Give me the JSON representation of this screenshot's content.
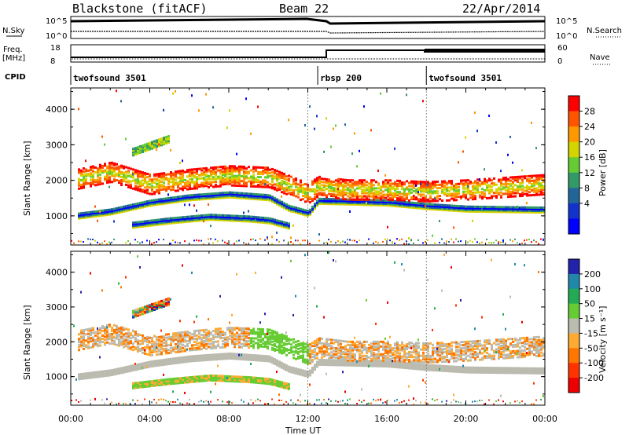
{
  "header": {
    "title": "Blackstone (fitACF)",
    "beam": "Beam 22",
    "date": "22/Apr/2014"
  },
  "left_labels": {
    "nsky": "N.Sky",
    "freq": "Freq.",
    "freq_unit": "[MHz]",
    "cpid": "CPID"
  },
  "right_labels": {
    "nsearch": "N.Search",
    "nave": "Nave"
  },
  "nsky_ticks": [
    "10^5",
    "10^0"
  ],
  "nsearch_ticks": [
    "10^5",
    "10^0"
  ],
  "freq_ticks": [
    "18",
    "8"
  ],
  "nave_ticks": [
    "60",
    "0"
  ],
  "cpid_segments": [
    {
      "label": "twofsound 3501",
      "start_hour": 0
    },
    {
      "label": "rbsp 200",
      "start_hour": 12.5
    },
    {
      "label": "twofsound 3501",
      "start_hour": 18
    }
  ],
  "power_colorbar": {
    "label": "Power [dB]",
    "ticks": [
      "28",
      "24",
      "20",
      "16",
      "12",
      "8",
      "4"
    ],
    "colors": [
      "#ff0000",
      "#ff5500",
      "#ff9900",
      "#d4d400",
      "#66cc33",
      "#339966",
      "#226699",
      "#1133cc",
      "#0000ff"
    ]
  },
  "velocity_colorbar": {
    "label": "Velocity [m s⁻¹]",
    "ticks": [
      "200",
      "100",
      "50",
      "15",
      "-15",
      "-50",
      "-100",
      "-200"
    ],
    "colors": [
      "#2222aa",
      "#2288aa",
      "#22aa55",
      "#66cc33",
      "#bbbbb0",
      "#ffaa33",
      "#ff7700",
      "#ff3300",
      "#ee0000"
    ]
  },
  "chart_data": [
    {
      "type": "heatmap",
      "panel": "power",
      "xlabel": "",
      "ylabel": "Slant Range [km]",
      "xlim_hours": [
        0,
        24
      ],
      "ylim_km": [
        180,
        4600
      ],
      "yticks": [
        "1000",
        "2000",
        "3000",
        "4000"
      ],
      "bands": [
        {
          "name": "main",
          "points": [
            [
              0.3,
              980
            ],
            [
              2,
              1100
            ],
            [
              4,
              1350
            ],
            [
              6,
              1500
            ],
            [
              8,
              1580
            ],
            [
              10,
              1500
            ],
            [
              11,
              1200
            ],
            [
              12,
              1050
            ],
            [
              12.5,
              1400
            ],
            [
              14,
              1380
            ],
            [
              16,
              1350
            ],
            [
              18,
              1250
            ],
            [
              20,
              1180
            ],
            [
              24,
              1150
            ]
          ],
          "width_km": 180
        },
        {
          "name": "upper",
          "points": [
            [
              0.3,
              2000
            ],
            [
              2,
              2200
            ],
            [
              4,
              1850
            ],
            [
              6,
              2000
            ],
            [
              8,
              2100
            ],
            [
              10,
              2050
            ],
            [
              12,
              1600
            ],
            [
              12.5,
              1800
            ],
            [
              14,
              1700
            ],
            [
              16,
              1700
            ],
            [
              18,
              1650
            ],
            [
              20,
              1700
            ],
            [
              24,
              1850
            ]
          ],
          "width_km": 550
        },
        {
          "name": "lower",
          "points": [
            [
              3,
              720
            ],
            [
              5,
              850
            ],
            [
              7,
              950
            ],
            [
              9,
              900
            ],
            [
              10,
              850
            ],
            [
              11,
              700
            ]
          ],
          "width_km": 180
        },
        {
          "name": "patch",
          "points": [
            [
              3,
              2750
            ],
            [
              4,
              2950
            ],
            [
              5,
              3150
            ]
          ],
          "width_km": 200
        }
      ]
    },
    {
      "type": "heatmap",
      "panel": "velocity",
      "xlabel": "Time UT",
      "ylabel": "Slant Range [km]",
      "xlim_hours": [
        0,
        24
      ],
      "ylim_km": [
        180,
        4600
      ],
      "yticks": [
        "1000",
        "2000",
        "3000",
        "4000"
      ],
      "xticks": [
        "00:00",
        "04:00",
        "08:00",
        "12:00",
        "16:00",
        "20:00",
        "00:00"
      ]
    }
  ]
}
